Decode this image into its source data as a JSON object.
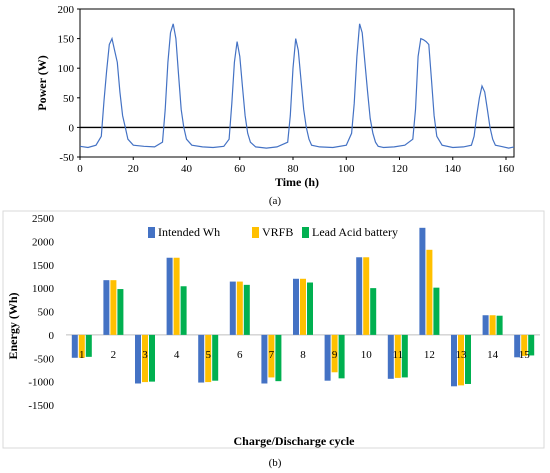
{
  "colors": {
    "intended": "#4472C4",
    "vrfb": "#FFC000",
    "lead": "#00B050",
    "power_line": "#4472C4"
  },
  "chart_data": [
    {
      "type": "line",
      "caption": "(a)",
      "xlabel": "Time (h)",
      "ylabel": "Power (W)",
      "xlim": [
        0,
        163
      ],
      "ylim": [
        -50,
        200
      ],
      "x_ticks": [
        "0",
        "20",
        "40",
        "60",
        "80",
        "100",
        "120",
        "140",
        "160"
      ],
      "y_ticks": [
        "-50",
        "0",
        "50",
        "100",
        "150",
        "200"
      ],
      "grid": false,
      "zero_line": true,
      "series": [
        {
          "x": [
            0,
            3,
            6,
            8,
            9,
            10,
            11,
            12,
            13,
            14,
            15,
            16,
            17,
            18,
            20,
            24,
            28,
            31,
            32,
            33,
            34,
            35,
            36,
            37,
            38,
            39,
            40,
            42,
            46,
            50,
            54,
            56,
            57,
            58,
            59,
            60,
            61,
            62,
            63,
            64,
            66,
            70,
            74,
            78,
            79,
            80,
            81,
            82,
            83,
            84,
            85,
            86,
            87,
            90,
            95,
            100,
            102,
            103,
            104,
            105,
            106,
            107,
            108,
            109,
            110,
            111,
            112,
            114,
            118,
            122,
            125,
            126,
            127,
            128,
            129,
            130,
            131,
            132,
            133,
            134,
            136,
            140,
            144,
            147,
            148,
            149,
            150,
            151,
            152,
            153,
            154,
            155,
            156,
            158,
            161,
            163
          ],
          "y": [
            -32,
            -34,
            -30,
            -15,
            45,
            95,
            140,
            150,
            130,
            110,
            60,
            20,
            0,
            -20,
            -30,
            -32,
            -33,
            -25,
            30,
            110,
            160,
            175,
            150,
            90,
            30,
            0,
            -20,
            -30,
            -33,
            -34,
            -32,
            -20,
            40,
            110,
            145,
            120,
            70,
            20,
            -10,
            -25,
            -33,
            -35,
            -33,
            -25,
            20,
            100,
            150,
            130,
            80,
            30,
            0,
            -20,
            -30,
            -33,
            -34,
            -30,
            -10,
            40,
            120,
            175,
            160,
            110,
            60,
            15,
            -10,
            -25,
            -32,
            -34,
            -33,
            -30,
            -20,
            30,
            120,
            150,
            148,
            145,
            140,
            80,
            20,
            -15,
            -30,
            -34,
            -33,
            -30,
            -15,
            20,
            50,
            70,
            60,
            30,
            0,
            -20,
            -30,
            -32,
            -35,
            -33
          ]
        }
      ]
    },
    {
      "type": "bar",
      "caption": "(b)",
      "xlabel": "Charge/Discharge cycle",
      "ylabel": "Energy (Wh)",
      "ylim": [
        -1500,
        2500
      ],
      "y_ticks": [
        "-1500",
        "-1000",
        "-500",
        "0",
        "500",
        "1000",
        "1500",
        "2000",
        "2500"
      ],
      "grid": false,
      "legend_position": "top",
      "categories": [
        "1",
        "2",
        "3",
        "4",
        "5",
        "6",
        "7",
        "8",
        "9",
        "10",
        "11",
        "12",
        "13",
        "14",
        "15"
      ],
      "series": [
        {
          "name": "Intended Wh",
          "values": [
            -490,
            1170,
            -1040,
            1650,
            -1020,
            1140,
            -1040,
            1200,
            -980,
            1660,
            -940,
            2290,
            -1100,
            420,
            -480
          ]
        },
        {
          "name": "VRFB",
          "values": [
            -490,
            1170,
            -1010,
            1650,
            -1010,
            1140,
            -910,
            1200,
            -800,
            1660,
            -920,
            1820,
            -1080,
            420,
            -450
          ]
        },
        {
          "name": "Lead Acid battery",
          "values": [
            -470,
            980,
            -1000,
            1040,
            -980,
            1070,
            -990,
            1120,
            -930,
            1000,
            -910,
            1010,
            -1050,
            410,
            -440
          ]
        }
      ]
    }
  ]
}
